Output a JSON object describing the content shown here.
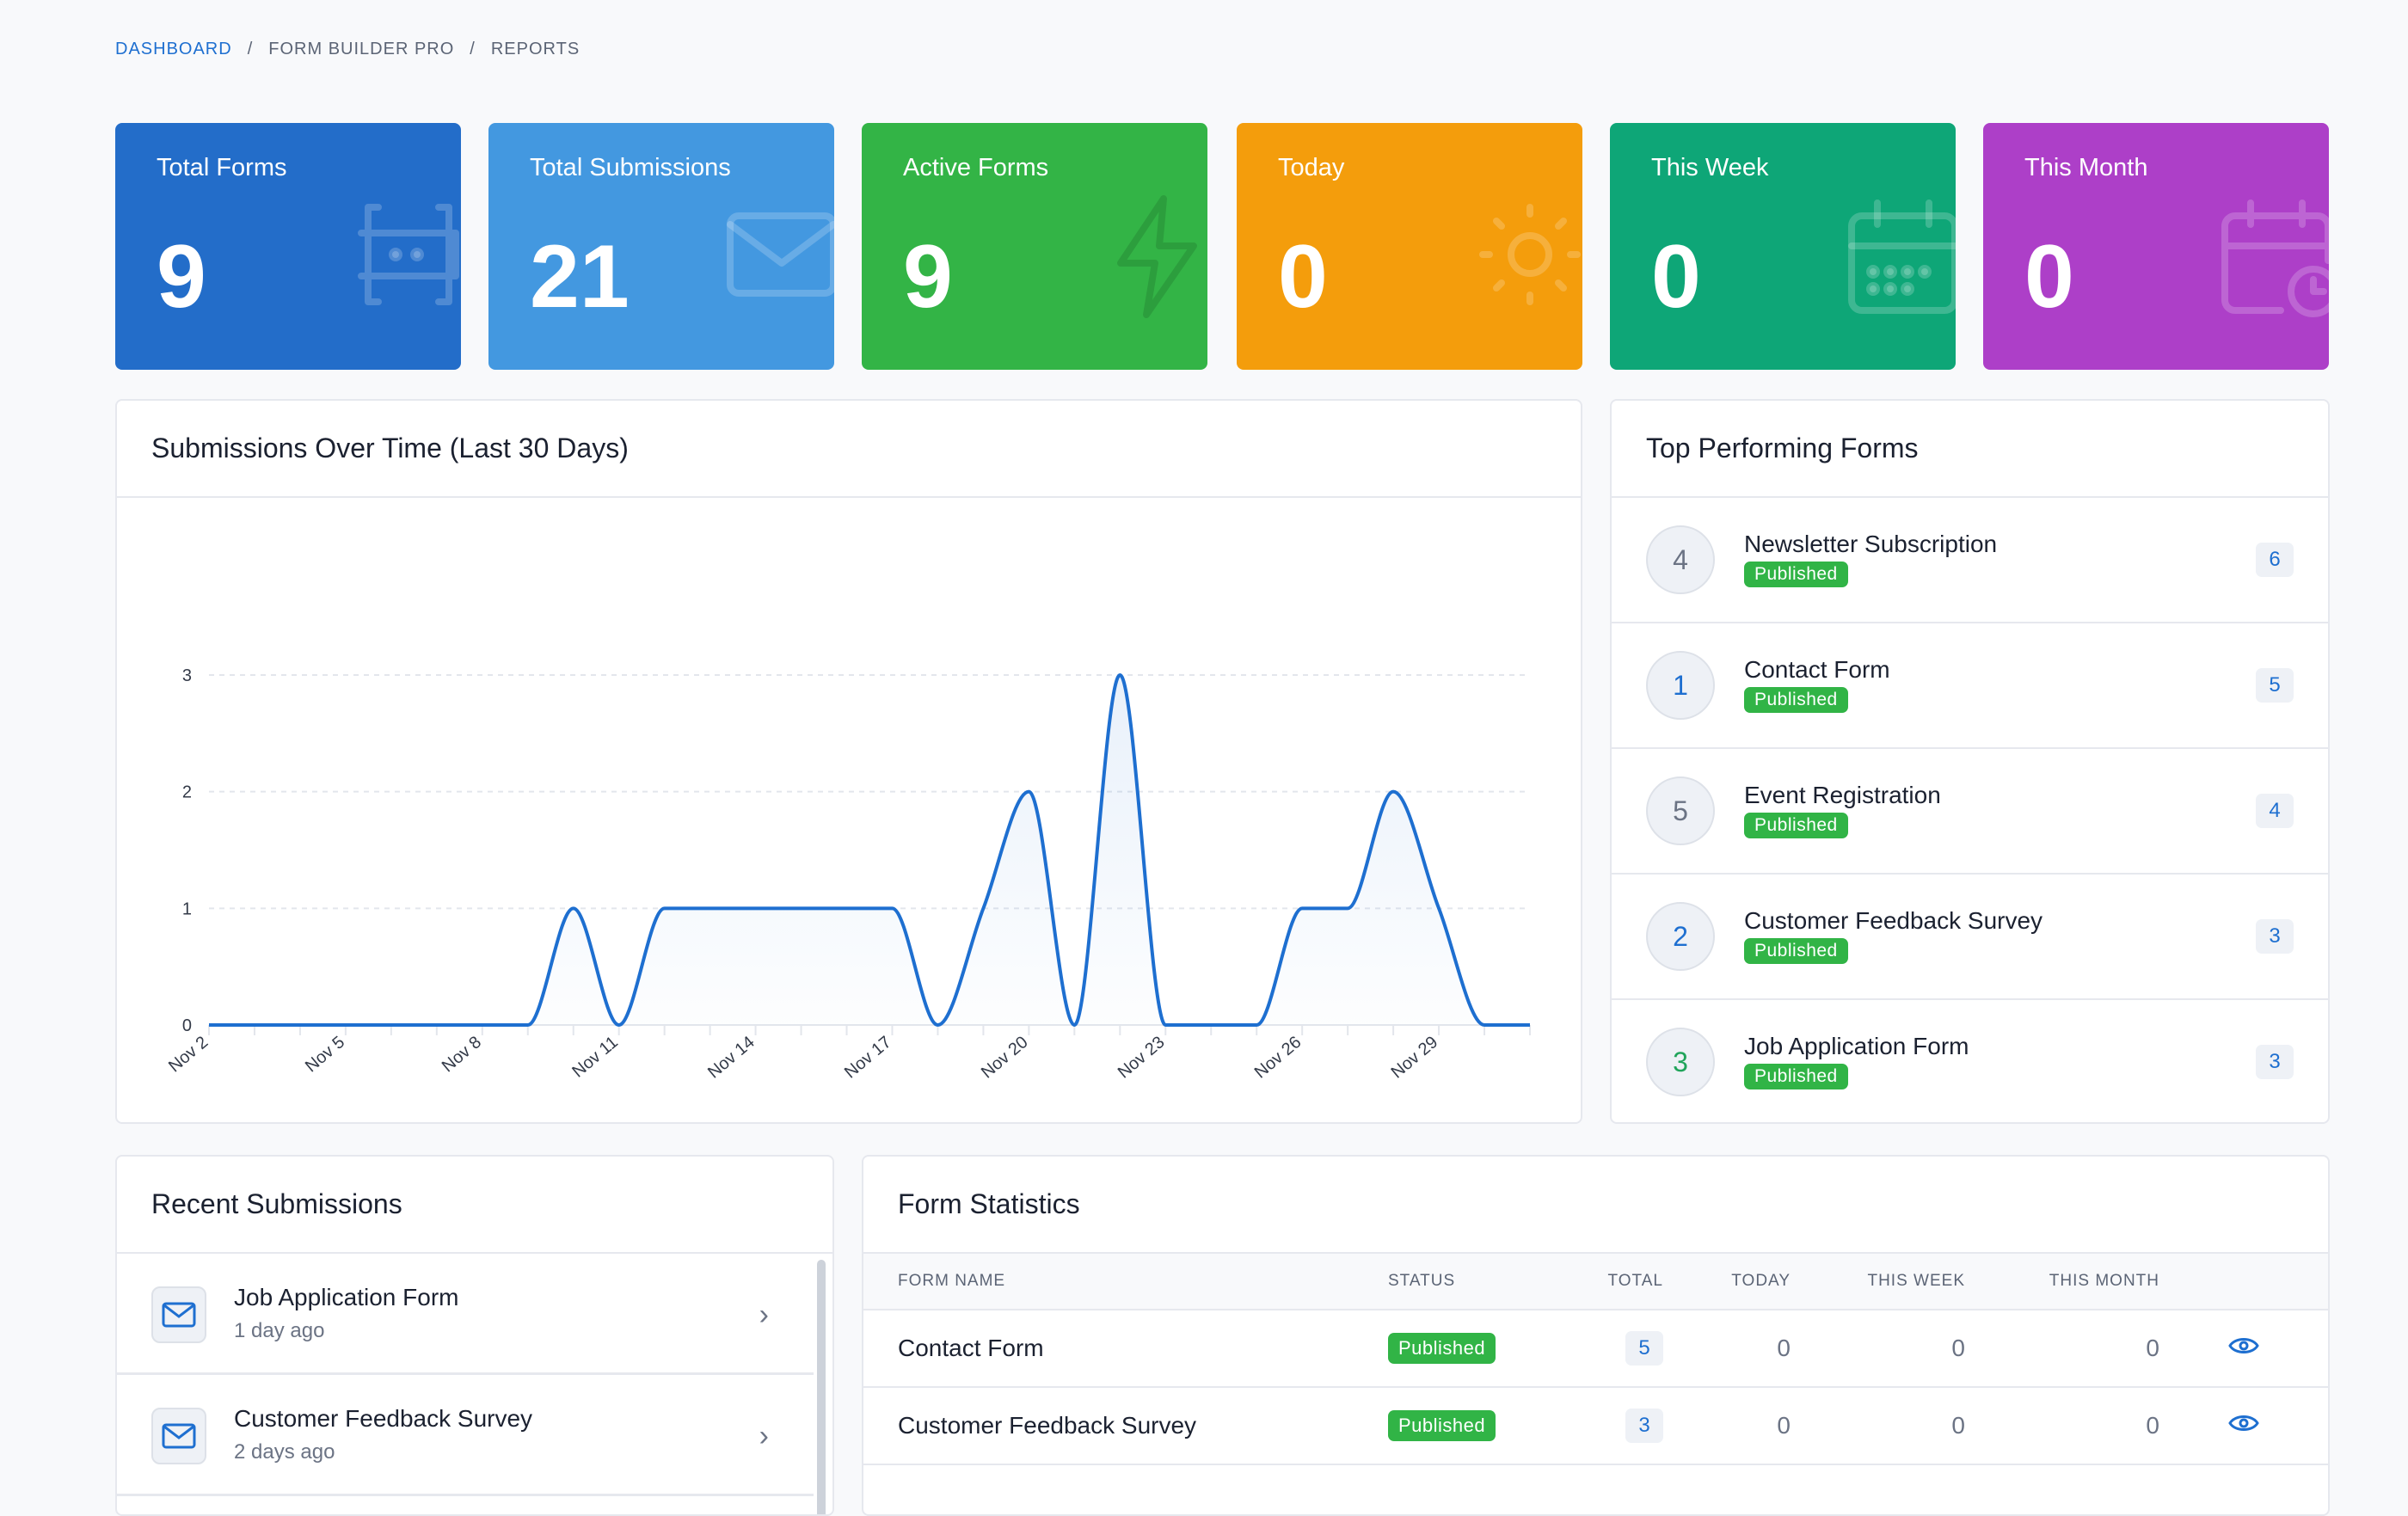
{
  "breadcrumb": [
    "DASHBOARD",
    "FORM BUILDER PRO",
    "REPORTS"
  ],
  "stats": [
    {
      "label": "Total Forms",
      "value": "9",
      "icon": "form-input-icon",
      "color": "#236dc9"
    },
    {
      "label": "Total Submissions",
      "value": "21",
      "icon": "envelope-icon",
      "color": "#4398e0"
    },
    {
      "label": "Active Forms",
      "value": "9",
      "icon": "bolt-icon",
      "color": "#33b446"
    },
    {
      "label": "Today",
      "value": "0",
      "icon": "sun-icon",
      "color": "#f49d0c"
    },
    {
      "label": "This Week",
      "value": "0",
      "icon": "calendar-icon",
      "color": "#0ea677"
    },
    {
      "label": "This Month",
      "value": "0",
      "icon": "calendar-clock-icon",
      "color": "#ad3fc8"
    }
  ],
  "chart_panel": {
    "title": "Submissions Over Time (Last 30 Days)"
  },
  "chart_data": {
    "type": "area",
    "x": [
      "Nov 2",
      "Nov 3",
      "Nov 4",
      "Nov 5",
      "Nov 6",
      "Nov 7",
      "Nov 8",
      "Nov 9",
      "Nov 10",
      "Nov 11",
      "Nov 12",
      "Nov 13",
      "Nov 14",
      "Nov 15",
      "Nov 16",
      "Nov 17",
      "Nov 18",
      "Nov 19",
      "Nov 20",
      "Nov 21",
      "Nov 22",
      "Nov 23",
      "Nov 24",
      "Nov 25",
      "Nov 26",
      "Nov 27",
      "Nov 28",
      "Nov 29",
      "Nov 30",
      "Dec 1"
    ],
    "tick_labels": [
      "Nov 2",
      "Nov 5",
      "Nov 8",
      "Nov 11",
      "Nov 14",
      "Nov 17",
      "Nov 20",
      "Nov 23",
      "Nov 26",
      "Nov 29"
    ],
    "values": [
      0,
      0,
      0,
      0,
      0,
      0,
      0,
      0,
      1,
      0,
      1,
      1,
      1,
      1,
      1,
      1,
      0,
      1,
      2,
      0,
      3,
      0,
      0,
      0,
      1,
      1,
      2,
      1,
      0,
      0
    ],
    "yticks": [
      0,
      1,
      2,
      3
    ],
    "ylim": [
      0,
      3
    ],
    "grid": true,
    "line_color": "#1e6fd0"
  },
  "top_forms": {
    "title": "Top Performing Forms",
    "items": [
      {
        "rank": "4",
        "name": "Newsletter Subscription",
        "status": "Published",
        "count": "6",
        "rank_color": "#6b7384"
      },
      {
        "rank": "1",
        "name": "Contact Form",
        "status": "Published",
        "count": "5",
        "rank_color": "#1e6fd0"
      },
      {
        "rank": "5",
        "name": "Event Registration",
        "status": "Published",
        "count": "4",
        "rank_color": "#6b7384"
      },
      {
        "rank": "2",
        "name": "Customer Feedback Survey",
        "status": "Published",
        "count": "3",
        "rank_color": "#1e6fd0"
      },
      {
        "rank": "3",
        "name": "Job Application Form",
        "status": "Published",
        "count": "3",
        "rank_color": "#20a45a"
      }
    ]
  },
  "recent": {
    "title": "Recent Submissions",
    "items": [
      {
        "name": "Job Application Form",
        "time": "1 day ago"
      },
      {
        "name": "Customer Feedback Survey",
        "time": "2 days ago"
      }
    ]
  },
  "form_stats": {
    "title": "Form Statistics",
    "columns": [
      "FORM NAME",
      "STATUS",
      "TOTAL",
      "TODAY",
      "THIS WEEK",
      "THIS MONTH"
    ],
    "rows": [
      {
        "name": "Contact Form",
        "status": "Published",
        "total": "5",
        "today": "0",
        "week": "0",
        "month": "0"
      },
      {
        "name": "Customer Feedback Survey",
        "status": "Published",
        "total": "3",
        "today": "0",
        "week": "0",
        "month": "0"
      }
    ]
  }
}
